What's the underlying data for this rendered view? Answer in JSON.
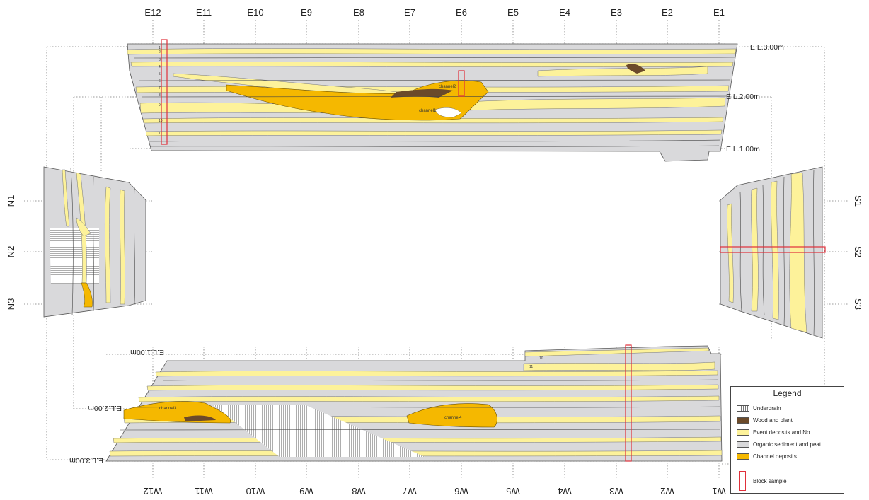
{
  "axes": {
    "top": [
      "E12",
      "E11",
      "E10",
      "E9",
      "E8",
      "E7",
      "E6",
      "E5",
      "E4",
      "E3",
      "E2",
      "E1"
    ],
    "bottom": [
      "W12",
      "W11",
      "W10",
      "W9",
      "W8",
      "W7",
      "W6",
      "W5",
      "W4",
      "W3",
      "W2",
      "W1"
    ],
    "left": [
      "N1",
      "N2",
      "N3"
    ],
    "right": [
      "S1",
      "S2",
      "S3"
    ]
  },
  "elevations": {
    "top": [
      "E.L.3.00m",
      "E.L.2.00m",
      "E.L.1.00m"
    ],
    "bottom": [
      "E.L.1.00m",
      "E.L.2.00m",
      "E.L.3.00m"
    ]
  },
  "channel_labels": {
    "north": [
      "channel2",
      "channel1"
    ],
    "south": [
      "channel3",
      "channel4"
    ]
  },
  "layer_numbers": {
    "north_wall": [
      "1",
      "2",
      "3",
      "4",
      "5",
      "6",
      "7",
      "8",
      "9",
      "10",
      "11"
    ],
    "south_wall": [
      "10",
      "11"
    ]
  },
  "legend": {
    "title": "Legend",
    "items": [
      {
        "label": "Underdrain",
        "swatch": "hatch"
      },
      {
        "label": "Wood and plant",
        "swatch": "#6b4a2a"
      },
      {
        "label": "Event deposits and No.",
        "swatch": "#fdf29a"
      },
      {
        "label": "Organic sediment and peat",
        "swatch": "#d9d9db"
      },
      {
        "label": "Channel deposits",
        "swatch": "#f5b800"
      },
      {
        "label": "Block sample",
        "swatch": "outline-red"
      }
    ]
  },
  "colors": {
    "organic": "#d9d9db",
    "event": "#fdf29a",
    "channel": "#f5b800",
    "wood": "#6b4a2a",
    "sample": "#e0303a",
    "grid": "#555555"
  }
}
